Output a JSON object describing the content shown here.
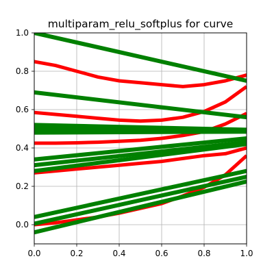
{
  "chart_data": {
    "type": "line",
    "title": "multiparam_relu_softplus for curve",
    "xlabel": "",
    "ylabel": "",
    "xlim": [
      0.0,
      1.0
    ],
    "ylim": [
      -0.1,
      1.0
    ],
    "x_ticks": [
      "0.0",
      "0.2",
      "0.4",
      "0.6",
      "0.8",
      "1.0"
    ],
    "y_ticks": [
      "0.0",
      "0.2",
      "0.4",
      "0.6",
      "0.8",
      "1.0"
    ],
    "grid": true,
    "legend": "none",
    "colors": {
      "curve": "#ff0000",
      "line": "#008000"
    },
    "series": [
      {
        "group": "curve",
        "x": [
          0,
          0.1,
          0.2,
          0.3,
          0.4,
          0.5,
          0.6,
          0.7,
          0.8,
          0.9,
          1.0
        ],
        "y": [
          0.85,
          0.83,
          0.8,
          0.77,
          0.75,
          0.74,
          0.73,
          0.72,
          0.73,
          0.75,
          0.78
        ]
      },
      {
        "group": "curve",
        "x": [
          0,
          0.1,
          0.2,
          0.3,
          0.4,
          0.5,
          0.6,
          0.7,
          0.8,
          0.9,
          1.0
        ],
        "y": [
          0.585,
          0.575,
          0.565,
          0.555,
          0.545,
          0.54,
          0.545,
          0.56,
          0.59,
          0.64,
          0.72
        ]
      },
      {
        "group": "curve",
        "x": [
          0,
          0.1,
          0.2,
          0.3,
          0.4,
          0.5,
          0.6,
          0.7,
          0.8,
          0.9,
          1.0
        ],
        "y": [
          0.425,
          0.425,
          0.427,
          0.43,
          0.435,
          0.44,
          0.45,
          0.465,
          0.485,
          0.525,
          0.58
        ]
      },
      {
        "group": "curve",
        "x": [
          0,
          0.1,
          0.2,
          0.3,
          0.4,
          0.5,
          0.6,
          0.7,
          0.8,
          0.9,
          1.0
        ],
        "y": [
          0.27,
          0.28,
          0.29,
          0.3,
          0.31,
          0.32,
          0.33,
          0.345,
          0.36,
          0.37,
          0.4
        ]
      },
      {
        "group": "curve",
        "x": [
          0,
          0.1,
          0.2,
          0.3,
          0.4,
          0.5,
          0.6,
          0.7,
          0.8,
          0.9,
          1.0
        ],
        "y": [
          0.0,
          0.01,
          0.025,
          0.04,
          0.06,
          0.085,
          0.11,
          0.15,
          0.195,
          0.26,
          0.36
        ]
      },
      {
        "group": "line",
        "x": [
          0,
          1.0
        ],
        "y": [
          1.0,
          0.75
        ]
      },
      {
        "group": "line",
        "x": [
          0,
          1.0
        ],
        "y": [
          0.69,
          0.56
        ]
      },
      {
        "group": "line",
        "x": [
          0,
          1.0
        ],
        "y": [
          0.52,
          0.495
        ]
      },
      {
        "group": "line",
        "x": [
          0,
          1.0
        ],
        "y": [
          0.5,
          0.49
        ]
      },
      {
        "group": "line",
        "x": [
          0,
          1.0
        ],
        "y": [
          0.48,
          0.485
        ]
      },
      {
        "group": "line",
        "x": [
          0,
          1.0
        ],
        "y": [
          0.34,
          0.45
        ]
      },
      {
        "group": "line",
        "x": [
          0,
          1.0
        ],
        "y": [
          0.31,
          0.43
        ]
      },
      {
        "group": "line",
        "x": [
          0,
          1.0
        ],
        "y": [
          0.28,
          0.42
        ]
      },
      {
        "group": "line",
        "x": [
          0,
          1.0
        ],
        "y": [
          0.04,
          0.28
        ]
      },
      {
        "group": "line",
        "x": [
          0,
          1.0
        ],
        "y": [
          0.005,
          0.25
        ]
      },
      {
        "group": "line",
        "x": [
          0,
          1.0
        ],
        "y": [
          -0.04,
          0.225
        ]
      }
    ]
  }
}
